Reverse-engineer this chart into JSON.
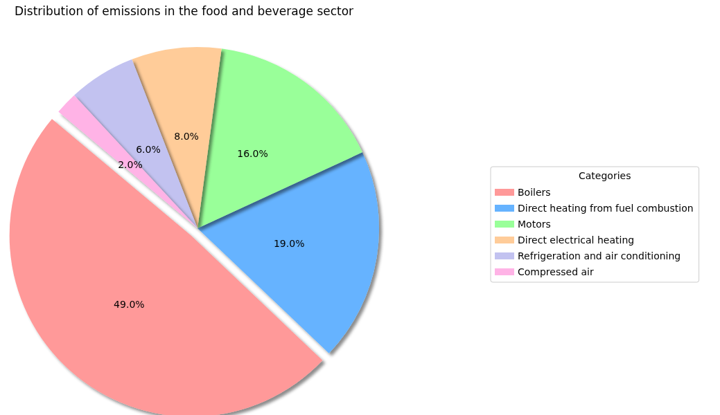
{
  "chart_data": {
    "type": "pie",
    "title": "Distribution of emissions in the food and beverage sector",
    "legend_title": "Categories",
    "legend": "right",
    "categories": [
      "Boilers",
      "Direct heating from fuel combustion",
      "Motors",
      "Direct electrical heating",
      "Refrigeration and air conditioning",
      "Compressed air"
    ],
    "values": [
      49,
      19,
      16,
      8,
      6,
      2
    ],
    "colors": [
      "#ff9999",
      "#66b3ff",
      "#99ff99",
      "#ffcc99",
      "#c2c2f0",
      "#ffb3e6"
    ],
    "value_labels": [
      "49.0%",
      "19.0%",
      "16.0%",
      "8.0%",
      "6.0%",
      "2.0%"
    ]
  }
}
